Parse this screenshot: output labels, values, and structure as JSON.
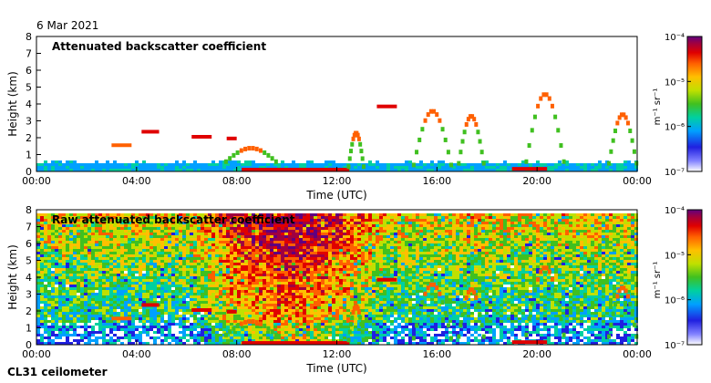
{
  "date": "6 Mar 2021",
  "footer": "CL31 ceilometer",
  "chart_data": [
    {
      "type": "heatmap",
      "title": "Attenuated backscatter coefficient",
      "xlabel": "Time (UTC)",
      "ylabel": "Height (km)",
      "x_ticks": [
        "00:00",
        "04:00",
        "08:00",
        "12:00",
        "16:00",
        "20:00",
        "00:00"
      ],
      "xlim_hours": [
        0,
        24
      ],
      "y_ticks": [
        "0",
        "1",
        "2",
        "3",
        "4",
        "5",
        "6",
        "7",
        "8"
      ],
      "ylim": [
        0,
        8
      ],
      "colorbar": {
        "label": "m⁻¹ sr⁻¹",
        "ticks": [
          "10⁻⁴",
          "10⁻⁵",
          "10⁻⁶",
          "10⁻⁷"
        ],
        "scale": "log",
        "range": [
          "1e-7",
          "1e-4"
        ]
      },
      "colormap": [
        "#ffffff",
        "#2020e0",
        "#00a0ff",
        "#00d0a0",
        "#40c020",
        "#c0e000",
        "#ffc000",
        "#ff6000",
        "#e00000",
        "#a00040",
        "#600080"
      ],
      "noise_filtered": true
    },
    {
      "type": "heatmap",
      "title": "Raw attenuated backscatter coefficient",
      "xlabel": "Time (UTC)",
      "ylabel": "Height (km)",
      "x_ticks": [
        "00:00",
        "04:00",
        "08:00",
        "12:00",
        "16:00",
        "20:00",
        "00:00"
      ],
      "xlim_hours": [
        0,
        24
      ],
      "y_ticks": [
        "0",
        "1",
        "2",
        "3",
        "4",
        "5",
        "6",
        "7",
        "8"
      ],
      "ylim": [
        0,
        8
      ],
      "colorbar": {
        "label": "m⁻¹ sr⁻¹",
        "ticks": [
          "10⁻⁴",
          "10⁻⁵",
          "10⁻⁶",
          "10⁻⁷"
        ],
        "scale": "log",
        "range": [
          "1e-7",
          "1e-4"
        ]
      },
      "colormap": [
        "#ffffff",
        "#2020e0",
        "#00a0ff",
        "#00d0a0",
        "#40c020",
        "#c0e000",
        "#ffc000",
        "#ff6000",
        "#e00000",
        "#a00040",
        "#600080"
      ],
      "noise_filtered": false
    }
  ]
}
